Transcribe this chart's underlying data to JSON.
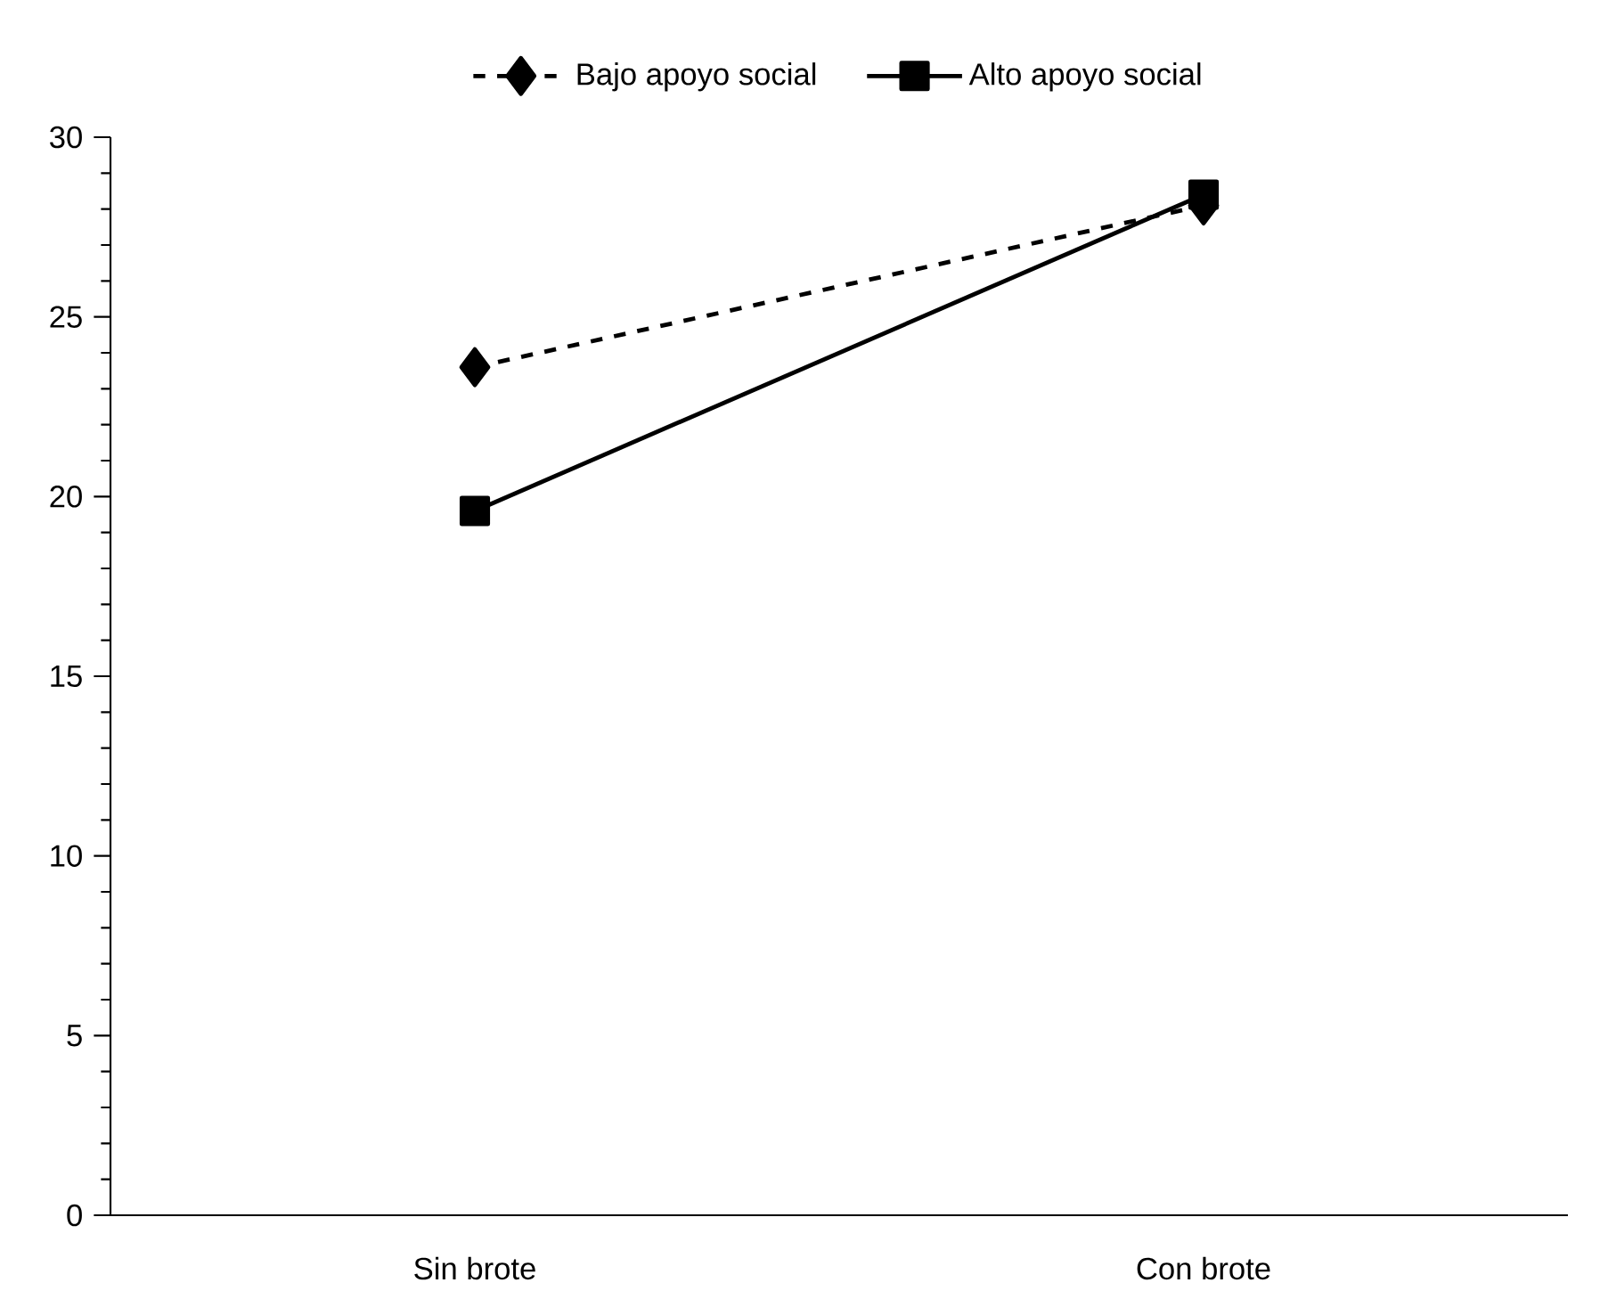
{
  "chart_data": {
    "type": "line",
    "categories": [
      "Sin brote",
      "Con brote"
    ],
    "series": [
      {
        "name": "Bajo apoyo social",
        "color": "#000000",
        "values": [
          23.6,
          28.1
        ],
        "marker": "diamond",
        "line_style": "dashed"
      },
      {
        "name": "Alto apoyo social",
        "color": "#000000",
        "values": [
          19.6,
          28.4
        ],
        "marker": "square",
        "line_style": "solid"
      }
    ],
    "ylim": [
      0,
      30
    ],
    "yticks": [
      0,
      5,
      10,
      15,
      20,
      25,
      30
    ],
    "grid": false,
    "legend": "top"
  }
}
